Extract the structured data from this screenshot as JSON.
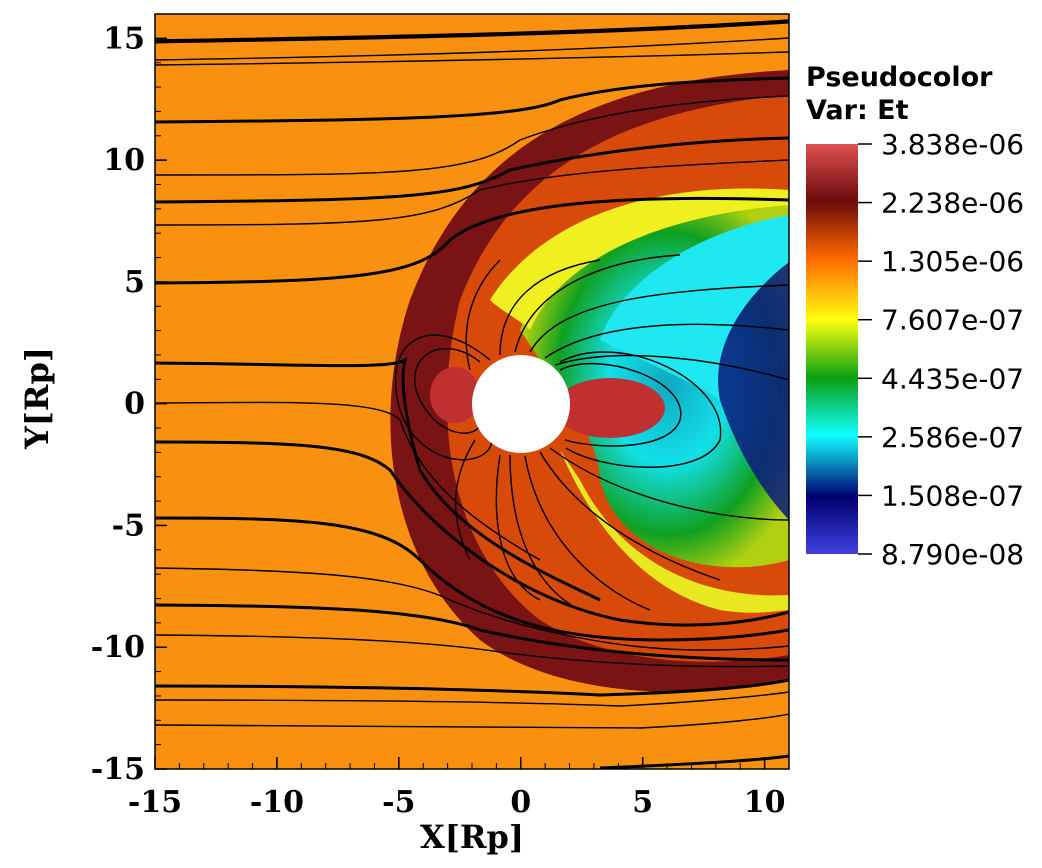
{
  "chart_data": {
    "type": "heatmap",
    "title": "",
    "xlabel": "X[Rp]",
    "ylabel": "Y[Rp]",
    "xlim": [
      -15,
      11
    ],
    "ylim": [
      -15,
      16
    ],
    "xticks": [
      -15,
      -10,
      -5,
      0,
      5,
      10
    ],
    "yticks": [
      -15,
      -10,
      -5,
      0,
      5,
      10,
      15
    ],
    "xtick_labels": [
      "-15",
      "-10",
      "-5",
      "0",
      "5",
      "10"
    ],
    "ytick_labels": [
      "-15",
      "-10",
      "-5",
      "0",
      "5",
      "10",
      "15"
    ],
    "planet_radius": 2,
    "legend": {
      "line1": "Pseudocolor",
      "line2": "Var: Et"
    },
    "colorbar": {
      "labels": [
        "3.838e-06",
        "2.238e-06",
        "1.305e-06",
        "7.607e-07",
        "4.435e-07",
        "2.586e-07",
        "1.508e-07",
        "8.790e-08"
      ],
      "colors": [
        "#e05050",
        "#6b0a0a",
        "#ff6a00",
        "#ffff10",
        "#0aa010",
        "#10ffff",
        "#000070",
        "#4040e0"
      ]
    },
    "field_lines": "streamlines of magnetic field drawn in black"
  }
}
